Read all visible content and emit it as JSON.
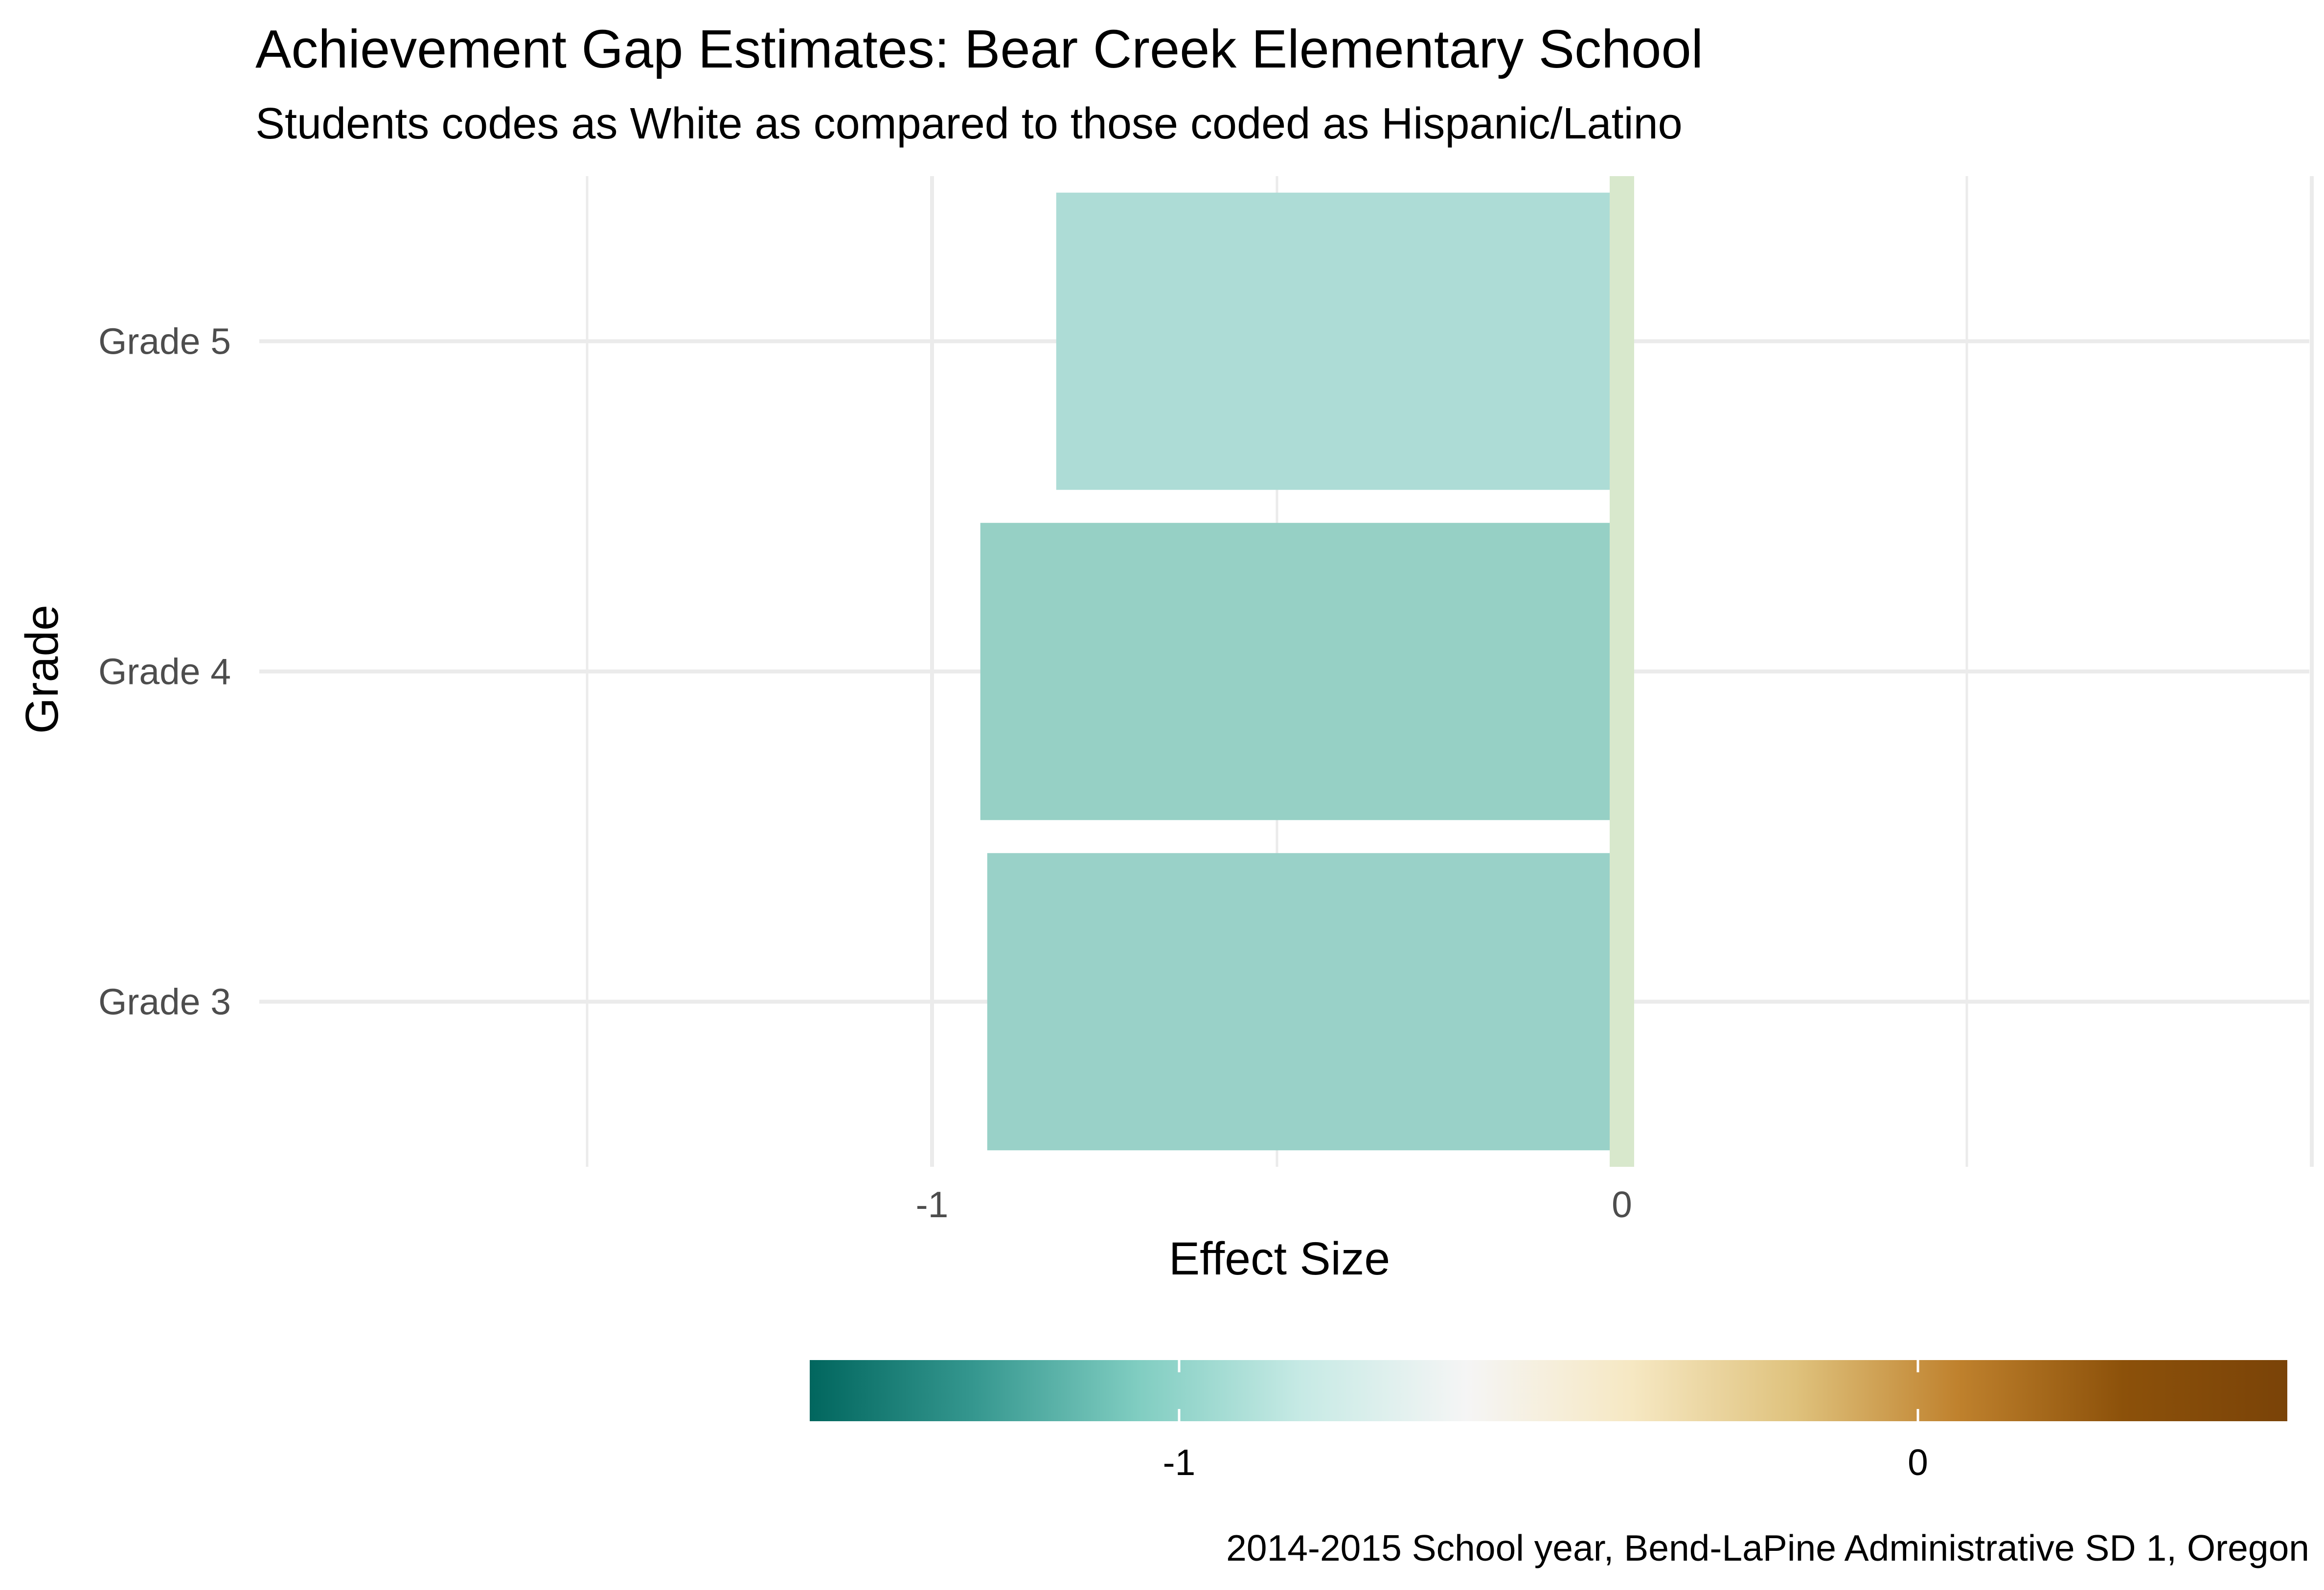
{
  "chart_data": {
    "type": "bar",
    "orientation": "horizontal",
    "title": "Achievement Gap Estimates: Bear Creek Elementary School",
    "subtitle": "Students codes as White as compared to those coded as Hispanic/Latino",
    "caption": "2014-2015 School year, Bend-LaPine Administrative SD 1, Oregon",
    "xlabel": "Effect Size",
    "ylabel": "Grade",
    "categories": [
      "Grade 3",
      "Grade 4",
      "Grade 5"
    ],
    "values": [
      -0.92,
      -0.93,
      -0.82
    ],
    "xlim": [
      -1.5,
      1.0
    ],
    "xticks": [
      -1,
      0
    ],
    "xtick_labels": [
      "-1",
      "0"
    ],
    "reference_line": {
      "x": 0,
      "color": "#d8e8cc"
    },
    "bar_colors": [
      "#99d1c8",
      "#96d0c5",
      "#addcd6"
    ],
    "grid": true,
    "legend": {
      "type": "colorbar",
      "position": "bottom",
      "range": [
        -1.5,
        0.5
      ],
      "ticks": [
        -1,
        0
      ],
      "tick_labels": [
        "-1",
        "0"
      ],
      "colors": [
        "#01665e",
        "#35978f",
        "#80cdc1",
        "#c7eae5",
        "#f5f5f5",
        "#f6e8c3",
        "#dfc27d",
        "#bf812d",
        "#8c510a",
        "#7a4308"
      ]
    }
  }
}
